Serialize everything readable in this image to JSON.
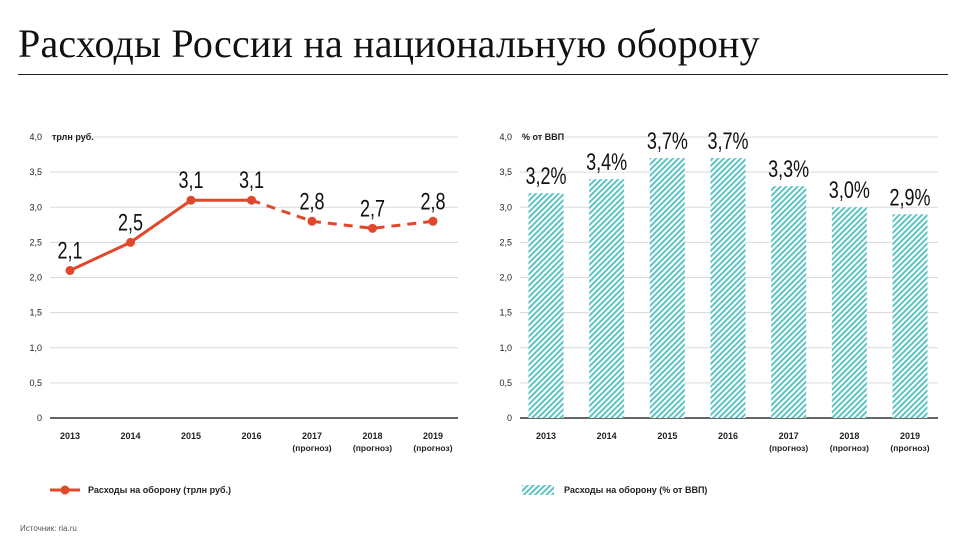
{
  "title": "Расходы России на национальную оборону",
  "source": "Источник: ria.ru",
  "colors": {
    "line": "#e0482c",
    "bar": "#5dc3c3",
    "grid": "#d9d9d9",
    "axis": "#333333"
  },
  "chart_data": [
    {
      "type": "line",
      "unit_label": "трлн руб.",
      "categories": [
        "2013",
        "2014",
        "2015",
        "2016",
        "2017",
        "2018",
        "2019"
      ],
      "category_notes": [
        "",
        "",
        "",
        "",
        "(прогноз)",
        "(прогноз)",
        "(прогноз)"
      ],
      "values": [
        2.1,
        2.5,
        3.1,
        3.1,
        2.8,
        2.7,
        2.8
      ],
      "data_labels": [
        "2,1",
        "2,5",
        "3,1",
        "3,1",
        "2,8",
        "2,7",
        "2,8"
      ],
      "forecast_from_index": 3,
      "yticks": [
        0,
        0.5,
        1.0,
        1.5,
        2.0,
        2.5,
        3.0,
        3.5,
        4.0
      ],
      "ytick_labels": [
        "0",
        "0,5",
        "1,0",
        "1,5",
        "2,0",
        "2,5",
        "3,0",
        "3,5",
        "4,0"
      ],
      "ylim": [
        0,
        4
      ],
      "legend": "Расходы на оборону (трлн руб.)"
    },
    {
      "type": "bar",
      "unit_label": "% от ВВП",
      "categories": [
        "2013",
        "2014",
        "2015",
        "2016",
        "2017",
        "2018",
        "2019"
      ],
      "category_notes": [
        "",
        "",
        "",
        "",
        "(прогноз)",
        "(прогноз)",
        "(прогноз)"
      ],
      "values": [
        3.2,
        3.4,
        3.7,
        3.7,
        3.3,
        3.0,
        2.9
      ],
      "data_labels": [
        "3,2%",
        "3,4%",
        "3,7%",
        "3,7%",
        "3,3%",
        "3,0%",
        "2,9%"
      ],
      "yticks": [
        0,
        0.5,
        1.0,
        1.5,
        2.0,
        2.5,
        3.0,
        3.5,
        4.0
      ],
      "ytick_labels": [
        "0",
        "0,5",
        "1,0",
        "1,5",
        "2,0",
        "2,5",
        "3,0",
        "3,5",
        "4,0"
      ],
      "ylim": [
        0,
        4
      ],
      "legend": "Расходы на оборону (% от ВВП)"
    }
  ]
}
